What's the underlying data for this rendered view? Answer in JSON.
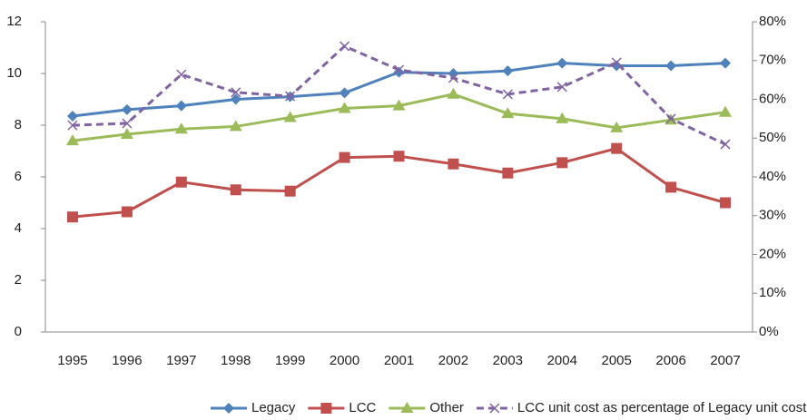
{
  "chart_data": {
    "type": "line",
    "categories": [
      "1995",
      "1996",
      "1997",
      "1998",
      "1999",
      "2000",
      "2001",
      "2002",
      "2003",
      "2004",
      "2005",
      "2006",
      "2007"
    ],
    "ylim": [
      0,
      12
    ],
    "yticks": [
      0,
      2,
      4,
      6,
      8,
      10,
      12
    ],
    "y2lim": [
      0,
      80
    ],
    "y2ticks": [
      {
        "value": 0,
        "label": "0%"
      },
      {
        "value": 10,
        "label": "10%"
      },
      {
        "value": 20,
        "label": "20%"
      },
      {
        "value": 30,
        "label": "30%"
      },
      {
        "value": 40,
        "label": "40%"
      },
      {
        "value": 50,
        "label": "50%"
      },
      {
        "value": 60,
        "label": "60%"
      },
      {
        "value": 70,
        "label": "70%"
      },
      {
        "value": 80,
        "label": "80%"
      }
    ],
    "grid": false,
    "legend": "bottom",
    "series": [
      {
        "name": "Legacy",
        "color": "#4f81bd",
        "marker": "diamond",
        "values": [
          8.35,
          8.6,
          8.75,
          9.0,
          9.1,
          9.25,
          10.05,
          10.0,
          10.1,
          10.4,
          10.3,
          10.3,
          10.4
        ]
      },
      {
        "name": "LCC",
        "color": "#c0504d",
        "marker": "square",
        "values": [
          4.45,
          4.65,
          5.8,
          5.5,
          5.45,
          6.75,
          6.8,
          6.5,
          6.15,
          6.55,
          7.1,
          5.6,
          5.0
        ]
      },
      {
        "name": "Other",
        "color": "#9bbb59",
        "marker": "triangle",
        "values": [
          7.4,
          7.65,
          7.85,
          7.95,
          8.3,
          8.65,
          8.75,
          9.2,
          8.45,
          8.25,
          7.9,
          8.2,
          8.5
        ]
      },
      {
        "name": "LCC unit cost as percentage of Legacy unit cost",
        "color": "#8064a2",
        "marker": "x",
        "dashed": true,
        "axis": "y2",
        "values": [
          53.3,
          53.8,
          66.4,
          61.8,
          60.8,
          73.7,
          67.6,
          65.5,
          61.3,
          63.2,
          69.5,
          55.0,
          48.4
        ]
      }
    ]
  }
}
